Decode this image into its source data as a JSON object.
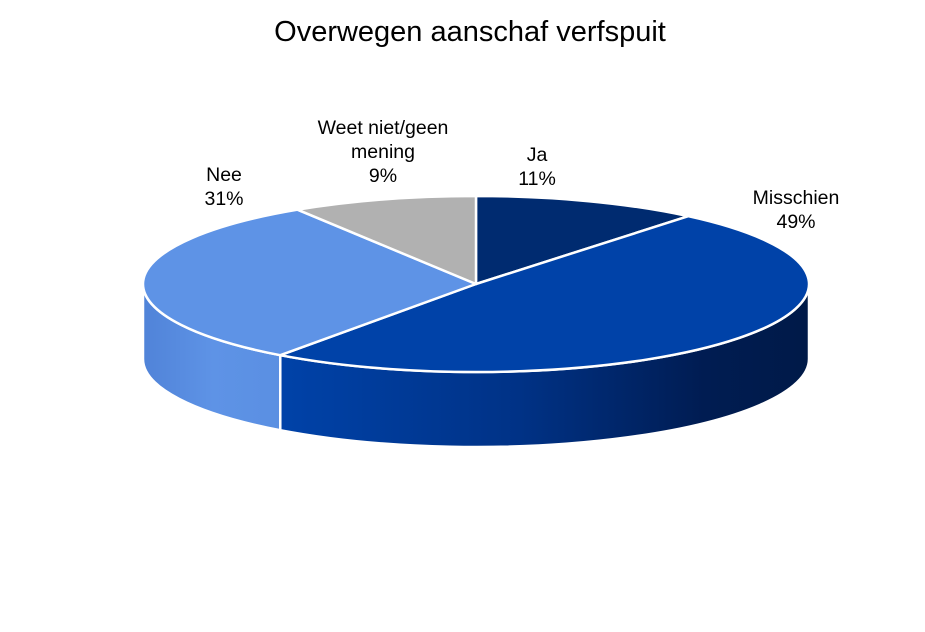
{
  "chart_data": {
    "type": "pie",
    "variant": "3d",
    "title": "Overwegen aanschaf verfspuit",
    "start_angle": "12 o'clock, clockwise",
    "slices": [
      {
        "label": "Ja",
        "value": 11,
        "display": "11%",
        "color": "#002B70",
        "side_color": "#001A4A"
      },
      {
        "label": "Misschien",
        "value": 49,
        "display": "49%",
        "color": "#0042A8",
        "side_color": "#001A4A"
      },
      {
        "label": "Nee",
        "value": 31,
        "display": "31%",
        "color": "#5E93E6",
        "side_color": "#5587DC"
      },
      {
        "label": "Weet niet/geen mening",
        "value": 9,
        "display": "9%",
        "color": "#B1B1B1",
        "side_color": "#9A9A9A"
      }
    ],
    "legend": "none (labels on slices)",
    "data_labels": "category name and percentage"
  },
  "labels": {
    "ja": {
      "name": "Ja",
      "pct": "11%"
    },
    "misschien": {
      "name": "Misschien",
      "pct": "49%"
    },
    "nee": {
      "name": "Nee",
      "pct": "31%"
    },
    "weet": {
      "name_line1": "Weet niet/geen",
      "name_line2": "mening",
      "pct": "9%"
    }
  }
}
